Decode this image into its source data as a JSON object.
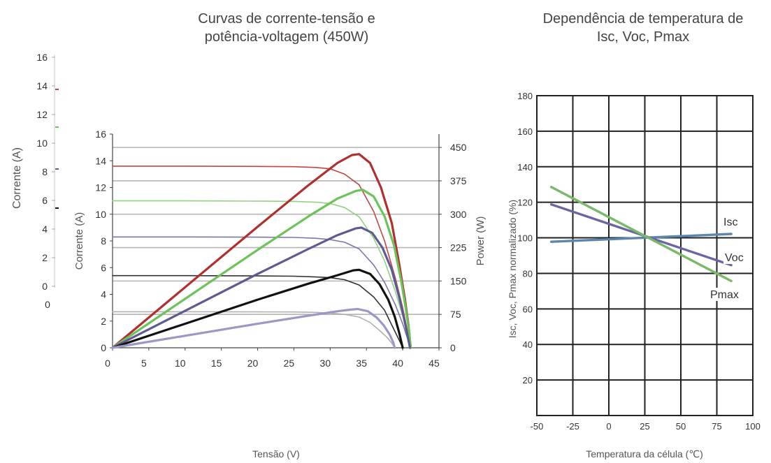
{
  "chart_data": [
    {
      "type": "line",
      "title_lines": [
        "Curvas de corrente-tensão e",
        "potência-voltagem (450W)"
      ],
      "xlabel": "Tensão (V)",
      "ylabel": "Corrente (A)",
      "y2label": "Power (W)",
      "xlim": [
        0,
        45
      ],
      "ylim": [
        0,
        16
      ],
      "y2lim": [
        0,
        480
      ],
      "x_ticks": [
        "0",
        "5",
        "10",
        "15",
        "20",
        "25",
        "30",
        "35",
        "40",
        "45"
      ],
      "y_ticks": [
        "0",
        "2",
        "4",
        "6",
        "8",
        "10",
        "12",
        "14",
        "16"
      ],
      "y2_ticks": [
        "0",
        "75",
        "150",
        "225",
        "300",
        "375",
        "450"
      ],
      "grid": "horizontal",
      "colors": {
        "red": "#b03030",
        "red_light": "#c04545",
        "green": "#6cc35a",
        "green_light": "#8fd37e",
        "purple": "#5e5a92",
        "purple_light": "#7a77ab",
        "black": "#111111",
        "black_light": "#333333",
        "lavender": "#9a98c6",
        "lavender_light": "#b0b0b0"
      },
      "iv_curves": [
        {
          "color": "red_light",
          "x": [
            0,
            10,
            20,
            25,
            28,
            30,
            32,
            34,
            36,
            37.5,
            39,
            40,
            40.6,
            41.1
          ],
          "y": [
            13.6,
            13.6,
            13.58,
            13.56,
            13.5,
            13.4,
            13.0,
            12.2,
            10.2,
            8.0,
            5.2,
            3.0,
            1.4,
            0
          ]
        },
        {
          "color": "green_light",
          "x": [
            0,
            10,
            20,
            25,
            28,
            30,
            32,
            34,
            36,
            37.5,
            39,
            40,
            40.6,
            41.1
          ],
          "y": [
            11.0,
            11.0,
            10.98,
            10.96,
            10.9,
            10.8,
            10.5,
            9.8,
            8.2,
            6.5,
            4.2,
            2.4,
            1.1,
            0
          ]
        },
        {
          "color": "purple_light",
          "x": [
            0,
            10,
            20,
            25,
            28,
            30,
            32,
            34,
            36,
            37.5,
            39,
            40,
            40.6,
            41.0
          ],
          "y": [
            8.3,
            8.3,
            8.28,
            8.26,
            8.2,
            8.1,
            7.9,
            7.4,
            6.2,
            4.9,
            3.2,
            1.8,
            0.8,
            0
          ]
        },
        {
          "color": "black_light",
          "x": [
            0,
            10,
            20,
            25,
            28,
            30,
            32,
            34,
            36,
            37.5,
            38.5,
            39.4,
            40.0
          ],
          "y": [
            5.4,
            5.4,
            5.38,
            5.36,
            5.3,
            5.25,
            5.1,
            4.7,
            3.8,
            2.8,
            1.7,
            0.7,
            0
          ]
        },
        {
          "color": "lavender_light",
          "x": [
            0,
            10,
            20,
            25,
            28,
            30,
            32,
            34,
            35.5,
            36.8,
            37.8,
            38.5,
            38.9
          ],
          "y": [
            2.7,
            2.7,
            2.69,
            2.68,
            2.65,
            2.6,
            2.5,
            2.3,
            1.9,
            1.3,
            0.8,
            0.35,
            0
          ]
        }
      ],
      "power_curves": [
        {
          "color": "red",
          "x": [
            0,
            10,
            20,
            27,
            31,
            33,
            34,
            35.5,
            37,
            38.5,
            39.5,
            40.3,
            40.8,
            41.1
          ],
          "y": [
            0,
            136,
            272,
            365,
            415,
            433,
            435,
            415,
            360,
            280,
            190,
            110,
            50,
            0
          ]
        },
        {
          "color": "green",
          "x": [
            0,
            10,
            20,
            27,
            31,
            33.5,
            34.5,
            36,
            37.5,
            38.8,
            39.8,
            40.4,
            40.9,
            41.1
          ],
          "y": [
            0,
            110,
            220,
            295,
            335,
            352,
            355,
            340,
            295,
            230,
            150,
            90,
            35,
            0
          ]
        },
        {
          "color": "purple",
          "x": [
            0,
            10,
            20,
            27,
            31,
            33.5,
            34.3,
            35.8,
            37.2,
            38.5,
            39.5,
            40.2,
            40.7,
            41.0
          ],
          "y": [
            0,
            83,
            166,
            222,
            253,
            268,
            270,
            258,
            225,
            175,
            115,
            65,
            25,
            0
          ]
        },
        {
          "color": "black",
          "x": [
            0,
            10,
            20,
            27,
            31,
            33.2,
            34.0,
            35.5,
            36.8,
            38.0,
            38.9,
            39.5,
            40.0
          ],
          "y": [
            0,
            54,
            108,
            144,
            163,
            174,
            175,
            166,
            143,
            108,
            70,
            35,
            0
          ]
        },
        {
          "color": "lavender",
          "x": [
            0,
            10,
            20,
            27,
            31,
            33.0,
            33.8,
            35.2,
            36.4,
            37.4,
            38.2,
            38.7,
            38.9
          ],
          "y": [
            0,
            27,
            54,
            72,
            82,
            86,
            87,
            82,
            68,
            50,
            30,
            12,
            0
          ]
        }
      ]
    },
    {
      "type": "line",
      "title_lines": [
        "Dependência de temperatura de",
        "Isc, Voc, Pmax"
      ],
      "xlabel": "Temperatura da célula (℃)",
      "ylabel": "Isc, Voc, Pmax normalizado (%)",
      "xlim": [
        -50,
        100
      ],
      "ylim": [
        0,
        180
      ],
      "x_ticks": [
        "-50",
        "-25",
        "0",
        "25",
        "50",
        "75",
        "100"
      ],
      "y_ticks": [
        "20",
        "40",
        "60",
        "80",
        "100",
        "120",
        "140",
        "160",
        "180"
      ],
      "grid": "both",
      "series": [
        {
          "name": "Isc",
          "color": "#5b86ad",
          "x": [
            -40,
            85
          ],
          "values": [
            97.8,
            102.2
          ]
        },
        {
          "name": "Voc",
          "color": "#6a66a3",
          "x": [
            -40,
            85
          ],
          "values": [
            118.8,
            84.6
          ]
        },
        {
          "name": "Pmax",
          "color": "#7ab86a",
          "x": [
            -40,
            85
          ],
          "values": [
            128.6,
            75.7
          ]
        }
      ]
    }
  ],
  "ghost_axis": {
    "ylabel": "Corrente (A)",
    "y_ticks": [
      "0",
      "2",
      "4",
      "6",
      "8",
      "10",
      "12",
      "14",
      "16"
    ],
    "x_tick": "0"
  }
}
